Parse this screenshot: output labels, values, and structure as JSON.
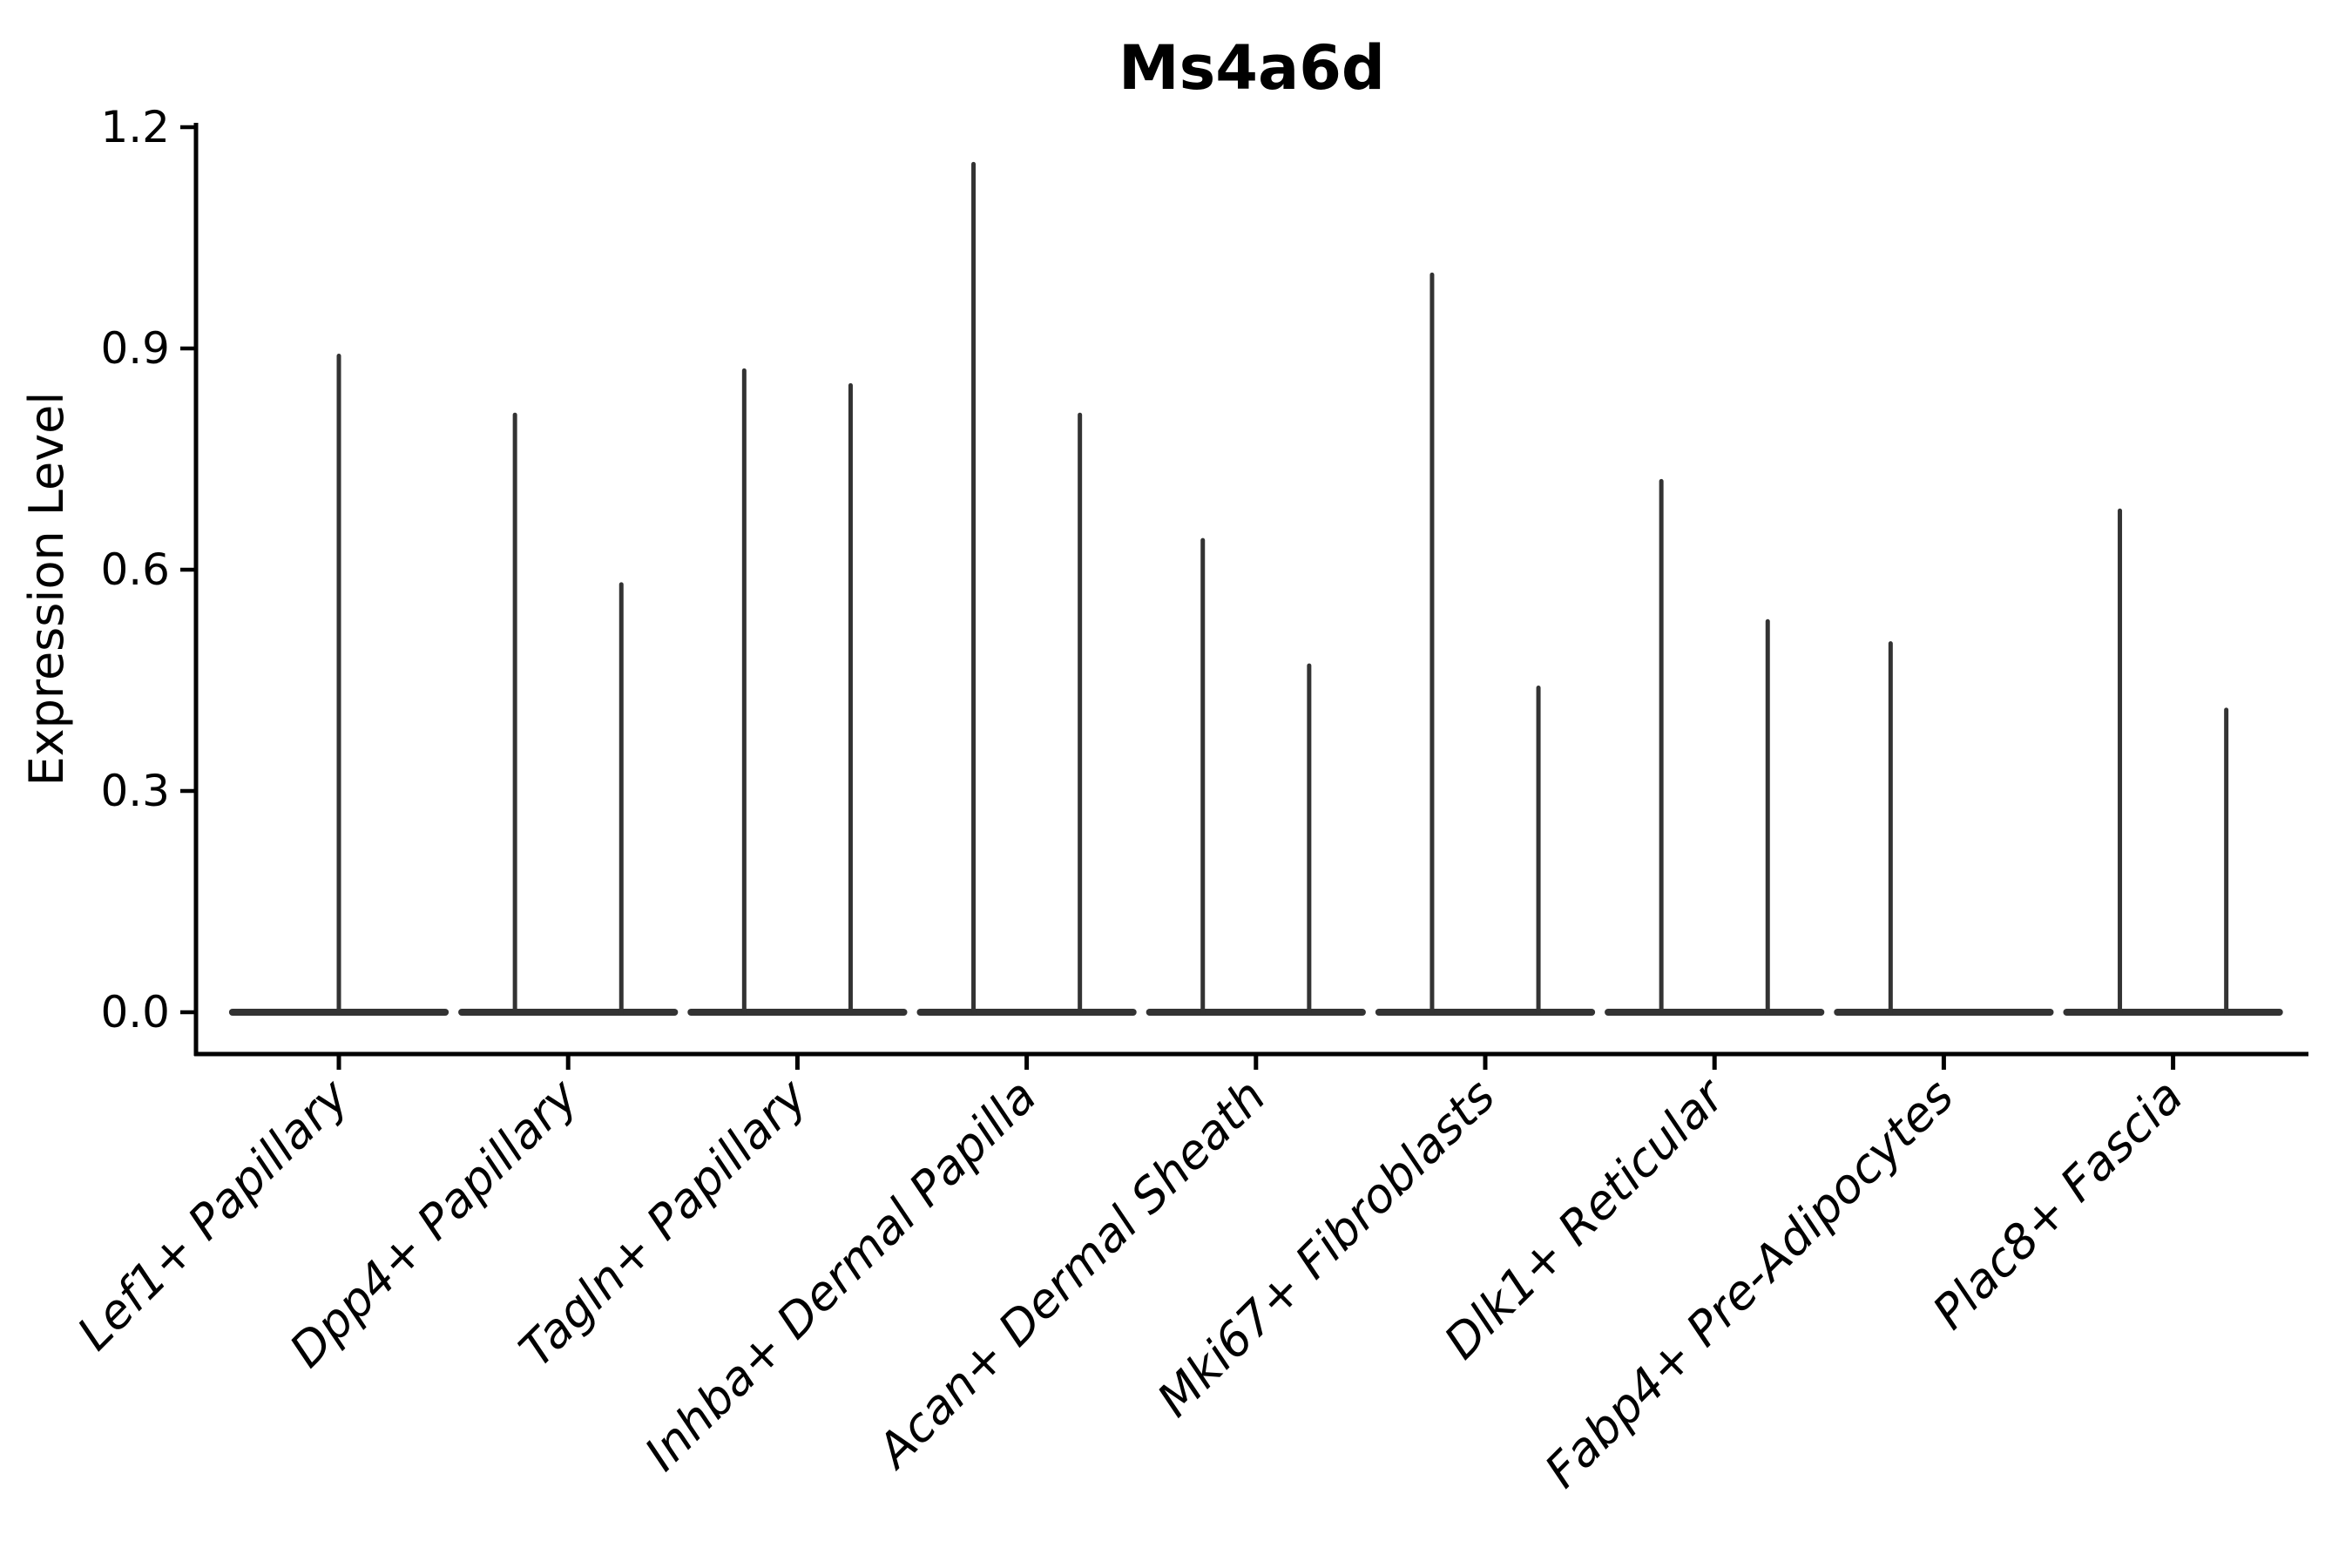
{
  "figure": {
    "background": "#ffffff"
  },
  "chart_data": {
    "type": "violin",
    "title": "Ms4a6d",
    "ylabel": "Expression Level",
    "xlabel": "",
    "ylim": [
      0.0,
      1.2
    ],
    "yticks": [
      {
        "value": 0.0,
        "label": "0.0"
      },
      {
        "value": 0.3,
        "label": "0.3"
      },
      {
        "value": 0.6,
        "label": "0.6"
      },
      {
        "value": 0.9,
        "label": "0.9"
      },
      {
        "value": 1.2,
        "label": "1.2"
      }
    ],
    "grid": false,
    "legend": null,
    "x_label_rotation_deg": 45,
    "x_label_style": "italic",
    "colors": {
      "violin_line": "#333333",
      "axis": "#000000",
      "background": "#ffffff"
    },
    "body_halfwidth_frac": 0.464,
    "categories": [
      "Lef1+ Papillary",
      "Dpp4+ Papillary",
      "Tagln+ Papillary",
      "Inhba+ Dermal Papilla",
      "Acan+ Dermal Sheath",
      "Mki67+ Fibroblasts",
      "Dlk1+ Reticular",
      "Fabp4+ Pre-Adipocytes",
      "Plac8+ Fascia"
    ],
    "violins": [
      {
        "category": "Lef1+ Papillary",
        "spikes": [
          {
            "offset_frac": 0.0,
            "max": 0.89
          }
        ]
      },
      {
        "category": "Dpp4+ Papillary",
        "spikes": [
          {
            "offset_frac": -0.232,
            "max": 0.81
          },
          {
            "offset_frac": 0.232,
            "max": 0.58
          }
        ]
      },
      {
        "category": "Tagln+ Papillary",
        "spikes": [
          {
            "offset_frac": -0.232,
            "max": 0.87
          },
          {
            "offset_frac": 0.232,
            "max": 0.85
          }
        ]
      },
      {
        "category": "Inhba+ Dermal Papilla",
        "spikes": [
          {
            "offset_frac": -0.232,
            "max": 1.15
          },
          {
            "offset_frac": 0.232,
            "max": 0.81
          }
        ]
      },
      {
        "category": "Acan+ Dermal Sheath",
        "spikes": [
          {
            "offset_frac": -0.232,
            "max": 0.64
          },
          {
            "offset_frac": 0.232,
            "max": 0.47
          }
        ]
      },
      {
        "category": "Mki67+ Fibroblasts",
        "spikes": [
          {
            "offset_frac": -0.232,
            "max": 1.0
          },
          {
            "offset_frac": 0.232,
            "max": 0.44
          }
        ]
      },
      {
        "category": "Dlk1+ Reticular",
        "spikes": [
          {
            "offset_frac": -0.232,
            "max": 0.72
          },
          {
            "offset_frac": 0.232,
            "max": 0.53
          }
        ]
      },
      {
        "category": "Fabp4+ Pre-Adipocytes",
        "spikes": [
          {
            "offset_frac": -0.232,
            "max": 0.5
          }
        ]
      },
      {
        "category": "Plac8+ Fascia",
        "spikes": [
          {
            "offset_frac": -0.232,
            "max": 0.68
          },
          {
            "offset_frac": 0.232,
            "max": 0.41
          }
        ]
      }
    ],
    "baseline_value": 0.0
  }
}
